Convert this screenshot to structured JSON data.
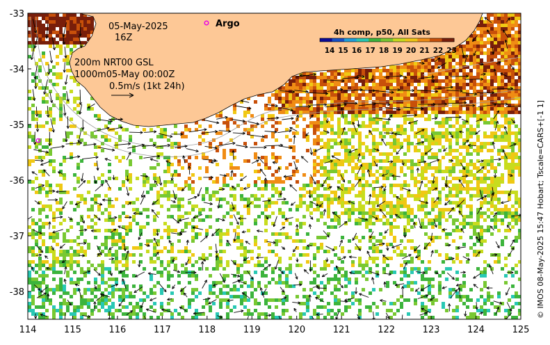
{
  "map": {
    "date_line": "05-May-2025",
    "time_line": "16Z",
    "argo_label": "Argo",
    "contour_label_line": "200m  NRT00 GSL",
    "contour_label_line2": "1000m05-May 00:00Z",
    "scale_label": "0.5m/s (1kt 24h)",
    "colorbar_title": "4h comp, p50, All Sats",
    "colorbar_ticks": [
      "14",
      "15",
      "16",
      "17",
      "18",
      "19",
      "20",
      "21",
      "22",
      "23"
    ],
    "colorbar_colors": [
      "#0a0a96",
      "#1450c8",
      "#1ea0dc",
      "#28c8b4",
      "#3cb43c",
      "#78c832",
      "#c8dc1e",
      "#f0c814",
      "#f08c14",
      "#c8500a",
      "#781e0a"
    ],
    "credit": "© IMOS 08-May-2025 15:47 Hobart; Tscale=CARS+[-1 1]",
    "x_ticks": [
      "114",
      "115",
      "116",
      "117",
      "118",
      "119",
      "120",
      "121",
      "122",
      "123",
      "124",
      "125"
    ],
    "y_ticks": [
      "-33",
      "-34",
      "-35",
      "-36",
      "-37",
      "-38"
    ],
    "land_color": "#fdc896",
    "argo_marker_color": "#e800e8"
  }
}
